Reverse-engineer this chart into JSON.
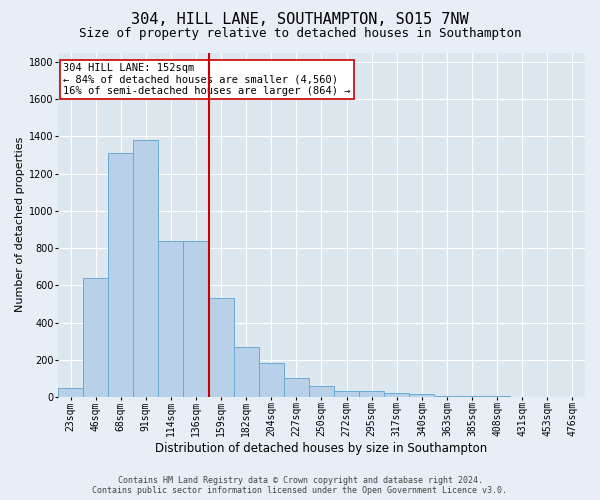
{
  "title": "304, HILL LANE, SOUTHAMPTON, SO15 7NW",
  "subtitle": "Size of property relative to detached houses in Southampton",
  "xlabel": "Distribution of detached houses by size in Southampton",
  "ylabel": "Number of detached properties",
  "categories": [
    "23sqm",
    "46sqm",
    "68sqm",
    "91sqm",
    "114sqm",
    "136sqm",
    "159sqm",
    "182sqm",
    "204sqm",
    "227sqm",
    "250sqm",
    "272sqm",
    "295sqm",
    "317sqm",
    "340sqm",
    "363sqm",
    "385sqm",
    "408sqm",
    "431sqm",
    "453sqm",
    "476sqm"
  ],
  "values": [
    50,
    640,
    1310,
    1380,
    840,
    840,
    530,
    270,
    185,
    100,
    60,
    30,
    30,
    20,
    15,
    8,
    5,
    3,
    2,
    2,
    2
  ],
  "bar_color": "#b8d0e8",
  "bar_edge_color": "#6aaad4",
  "vline_color": "#cc0000",
  "annotation_text": "304 HILL LANE: 152sqm\n← 84% of detached houses are smaller (4,560)\n16% of semi-detached houses are larger (864) →",
  "annotation_box_color": "#ffffff",
  "annotation_box_edge": "#cc0000",
  "ylim": [
    0,
    1850
  ],
  "yticks": [
    0,
    200,
    400,
    600,
    800,
    1000,
    1200,
    1400,
    1600,
    1800
  ],
  "bg_color": "#e8eef5",
  "plot_bg_color": "#dce7f0",
  "footer_line1": "Contains HM Land Registry data © Crown copyright and database right 2024.",
  "footer_line2": "Contains public sector information licensed under the Open Government Licence v3.0.",
  "title_fontsize": 11,
  "subtitle_fontsize": 9,
  "annotation_fontsize": 7.5,
  "tick_fontsize": 7,
  "ylabel_fontsize": 8,
  "xlabel_fontsize": 8.5
}
